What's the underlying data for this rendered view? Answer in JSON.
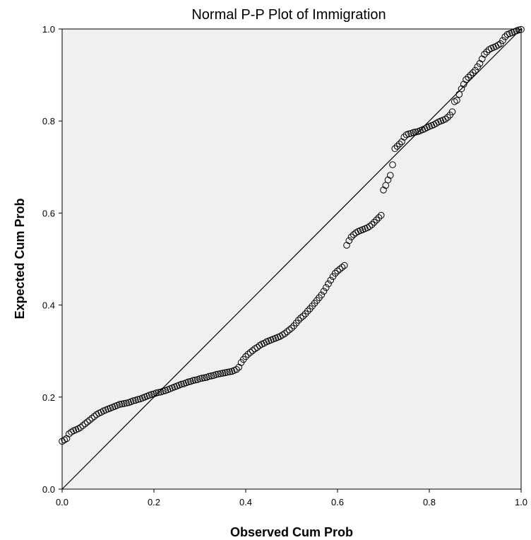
{
  "chart_data": {
    "type": "scatter",
    "title": "Normal P-P Plot of Immigration",
    "xlabel": "Observed Cum Prob",
    "ylabel": "Expected Cum Prob",
    "xlim": [
      0,
      1
    ],
    "ylim": [
      0,
      1
    ],
    "x_ticks": [
      "0.0",
      "0.2",
      "0.4",
      "0.6",
      "0.8",
      "1.0"
    ],
    "y_ticks": [
      "0.0",
      "0.2",
      "0.4",
      "0.6",
      "0.8",
      "1.0"
    ],
    "grid": false,
    "legend": "none",
    "reference_line": {
      "x": [
        0,
        1
      ],
      "y": [
        0,
        1
      ]
    },
    "colors": {
      "plot_background": "#f0f0f0",
      "marker_stroke": "#000000",
      "line": "#000000"
    },
    "series": [
      {
        "marker": "circle-open",
        "x": [
          0.0,
          0.005,
          0.01,
          0.015,
          0.02,
          0.025,
          0.03,
          0.035,
          0.04,
          0.045,
          0.05,
          0.055,
          0.06,
          0.065,
          0.07,
          0.075,
          0.08,
          0.085,
          0.09,
          0.095,
          0.1,
          0.105,
          0.11,
          0.115,
          0.12,
          0.125,
          0.13,
          0.135,
          0.14,
          0.145,
          0.15,
          0.155,
          0.16,
          0.165,
          0.17,
          0.175,
          0.18,
          0.185,
          0.19,
          0.195,
          0.2,
          0.205,
          0.21,
          0.215,
          0.22,
          0.225,
          0.23,
          0.235,
          0.24,
          0.245,
          0.25,
          0.255,
          0.26,
          0.265,
          0.27,
          0.275,
          0.28,
          0.285,
          0.29,
          0.295,
          0.3,
          0.305,
          0.31,
          0.315,
          0.32,
          0.325,
          0.33,
          0.335,
          0.34,
          0.345,
          0.35,
          0.355,
          0.36,
          0.365,
          0.37,
          0.375,
          0.38,
          0.385,
          0.39,
          0.395,
          0.4,
          0.405,
          0.41,
          0.415,
          0.42,
          0.425,
          0.43,
          0.435,
          0.44,
          0.445,
          0.45,
          0.455,
          0.46,
          0.465,
          0.47,
          0.475,
          0.48,
          0.485,
          0.49,
          0.495,
          0.5,
          0.505,
          0.51,
          0.515,
          0.52,
          0.525,
          0.53,
          0.535,
          0.54,
          0.545,
          0.55,
          0.555,
          0.56,
          0.565,
          0.57,
          0.575,
          0.58,
          0.585,
          0.59,
          0.595,
          0.6,
          0.605,
          0.61,
          0.615,
          0.62,
          0.625,
          0.63,
          0.635,
          0.64,
          0.645,
          0.65,
          0.655,
          0.66,
          0.665,
          0.67,
          0.675,
          0.68,
          0.685,
          0.69,
          0.695,
          0.7,
          0.705,
          0.71,
          0.715,
          0.72,
          0.725,
          0.73,
          0.735,
          0.74,
          0.745,
          0.75,
          0.755,
          0.76,
          0.765,
          0.77,
          0.775,
          0.78,
          0.785,
          0.79,
          0.795,
          0.8,
          0.805,
          0.81,
          0.815,
          0.82,
          0.825,
          0.83,
          0.835,
          0.84,
          0.845,
          0.85,
          0.855,
          0.86,
          0.865,
          0.87,
          0.875,
          0.88,
          0.885,
          0.89,
          0.895,
          0.9,
          0.905,
          0.91,
          0.915,
          0.92,
          0.925,
          0.93,
          0.935,
          0.94,
          0.945,
          0.95,
          0.955,
          0.96,
          0.965,
          0.97,
          0.975,
          0.98,
          0.985,
          0.99,
          0.995,
          1.0
        ],
        "y": [
          0.104,
          0.107,
          0.11,
          0.12,
          0.124,
          0.127,
          0.129,
          0.131,
          0.134,
          0.138,
          0.142,
          0.146,
          0.15,
          0.154,
          0.158,
          0.162,
          0.165,
          0.167,
          0.17,
          0.172,
          0.174,
          0.176,
          0.178,
          0.18,
          0.182,
          0.184,
          0.185,
          0.186,
          0.187,
          0.188,
          0.19,
          0.192,
          0.193,
          0.195,
          0.196,
          0.198,
          0.2,
          0.202,
          0.204,
          0.206,
          0.207,
          0.209,
          0.21,
          0.211,
          0.213,
          0.214,
          0.216,
          0.218,
          0.22,
          0.222,
          0.224,
          0.226,
          0.228,
          0.229,
          0.231,
          0.233,
          0.234,
          0.236,
          0.237,
          0.238,
          0.24,
          0.241,
          0.242,
          0.243,
          0.245,
          0.246,
          0.247,
          0.249,
          0.25,
          0.251,
          0.252,
          0.253,
          0.254,
          0.255,
          0.256,
          0.258,
          0.26,
          0.265,
          0.275,
          0.282,
          0.288,
          0.293,
          0.297,
          0.301,
          0.305,
          0.308,
          0.312,
          0.315,
          0.317,
          0.32,
          0.322,
          0.324,
          0.326,
          0.328,
          0.33,
          0.332,
          0.335,
          0.338,
          0.342,
          0.346,
          0.35,
          0.355,
          0.361,
          0.367,
          0.372,
          0.376,
          0.381,
          0.387,
          0.392,
          0.398,
          0.404,
          0.41,
          0.416,
          0.422,
          0.43,
          0.438,
          0.446,
          0.454,
          0.462,
          0.469,
          0.474,
          0.478,
          0.482,
          0.486,
          0.53,
          0.54,
          0.548,
          0.553,
          0.557,
          0.56,
          0.562,
          0.564,
          0.566,
          0.568,
          0.571,
          0.575,
          0.58,
          0.585,
          0.59,
          0.595,
          0.65,
          0.66,
          0.672,
          0.682,
          0.705,
          0.74,
          0.745,
          0.75,
          0.755,
          0.765,
          0.77,
          0.772,
          0.773,
          0.775,
          0.776,
          0.777,
          0.779,
          0.781,
          0.783,
          0.786,
          0.788,
          0.79,
          0.792,
          0.795,
          0.798,
          0.8,
          0.802,
          0.804,
          0.808,
          0.813,
          0.82,
          0.842,
          0.845,
          0.858,
          0.87,
          0.88,
          0.89,
          0.895,
          0.9,
          0.905,
          0.91,
          0.918,
          0.925,
          0.935,
          0.945,
          0.95,
          0.955,
          0.958,
          0.96,
          0.962,
          0.965,
          0.968,
          0.975,
          0.983,
          0.988,
          0.99,
          0.992,
          0.994,
          0.996,
          0.998,
          0.999
        ]
      }
    ]
  }
}
